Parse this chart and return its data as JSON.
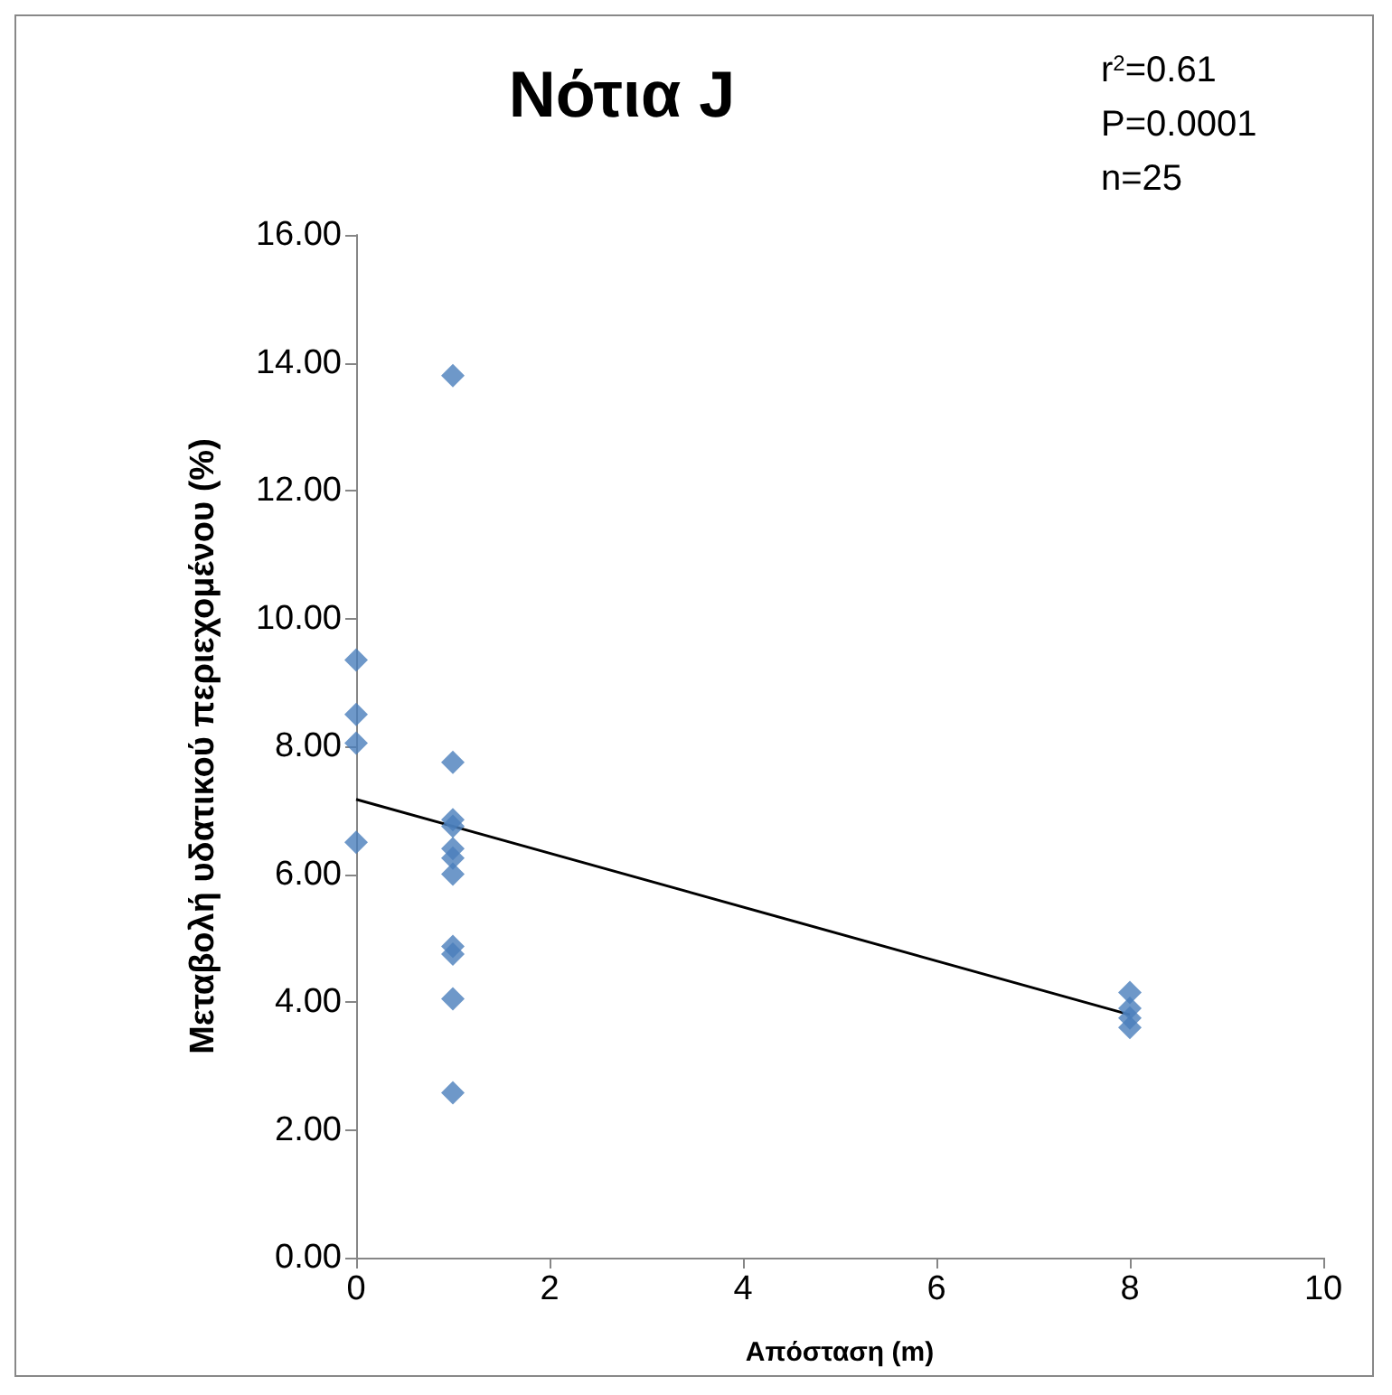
{
  "chart_data": {
    "type": "scatter",
    "title": "Νότια J",
    "xlabel": "Απόσταση (m)",
    "ylabel": "Μεταβολή υδατικού περιεχομένου (%)",
    "annotations": [
      "r$^{2}$=0.61",
      "P=0.0001",
      "n=25"
    ],
    "xlim": [
      0,
      10
    ],
    "xticks": [
      0,
      2,
      4,
      6,
      8,
      10
    ],
    "ylim": [
      0,
      16
    ],
    "yticks": [
      {
        "value": 0,
        "label": "0.00"
      },
      {
        "value": 2,
        "label": "2.00"
      },
      {
        "value": 4,
        "label": "4.00"
      },
      {
        "value": 6,
        "label": "6.00"
      },
      {
        "value": 8,
        "label": "8.00"
      },
      {
        "value": 10,
        "label": "10.00"
      },
      {
        "value": 12,
        "label": "12.00"
      },
      {
        "value": 14,
        "label": "14.00"
      },
      {
        "value": 16,
        "label": "16.00"
      }
    ],
    "grid": false,
    "marker": "diamond",
    "series": [
      {
        "type": "scatter",
        "color": "#4a7ebb",
        "x": [
          0,
          0,
          0,
          0,
          1,
          1,
          1,
          1,
          1,
          1,
          1,
          1,
          1,
          1,
          1,
          8,
          8,
          8,
          8
        ],
        "values": [
          9.35,
          8.5,
          8.05,
          6.5,
          13.8,
          7.75,
          6.85,
          6.75,
          6.4,
          6.25,
          6.0,
          4.87,
          4.75,
          4.05,
          2.58,
          4.15,
          3.9,
          3.75,
          3.6
        ]
      },
      {
        "type": "line",
        "color": "#000000",
        "marker": "none",
        "line_style": "solid",
        "x": [
          0,
          8
        ],
        "values": [
          7.17,
          3.8
        ]
      }
    ]
  }
}
